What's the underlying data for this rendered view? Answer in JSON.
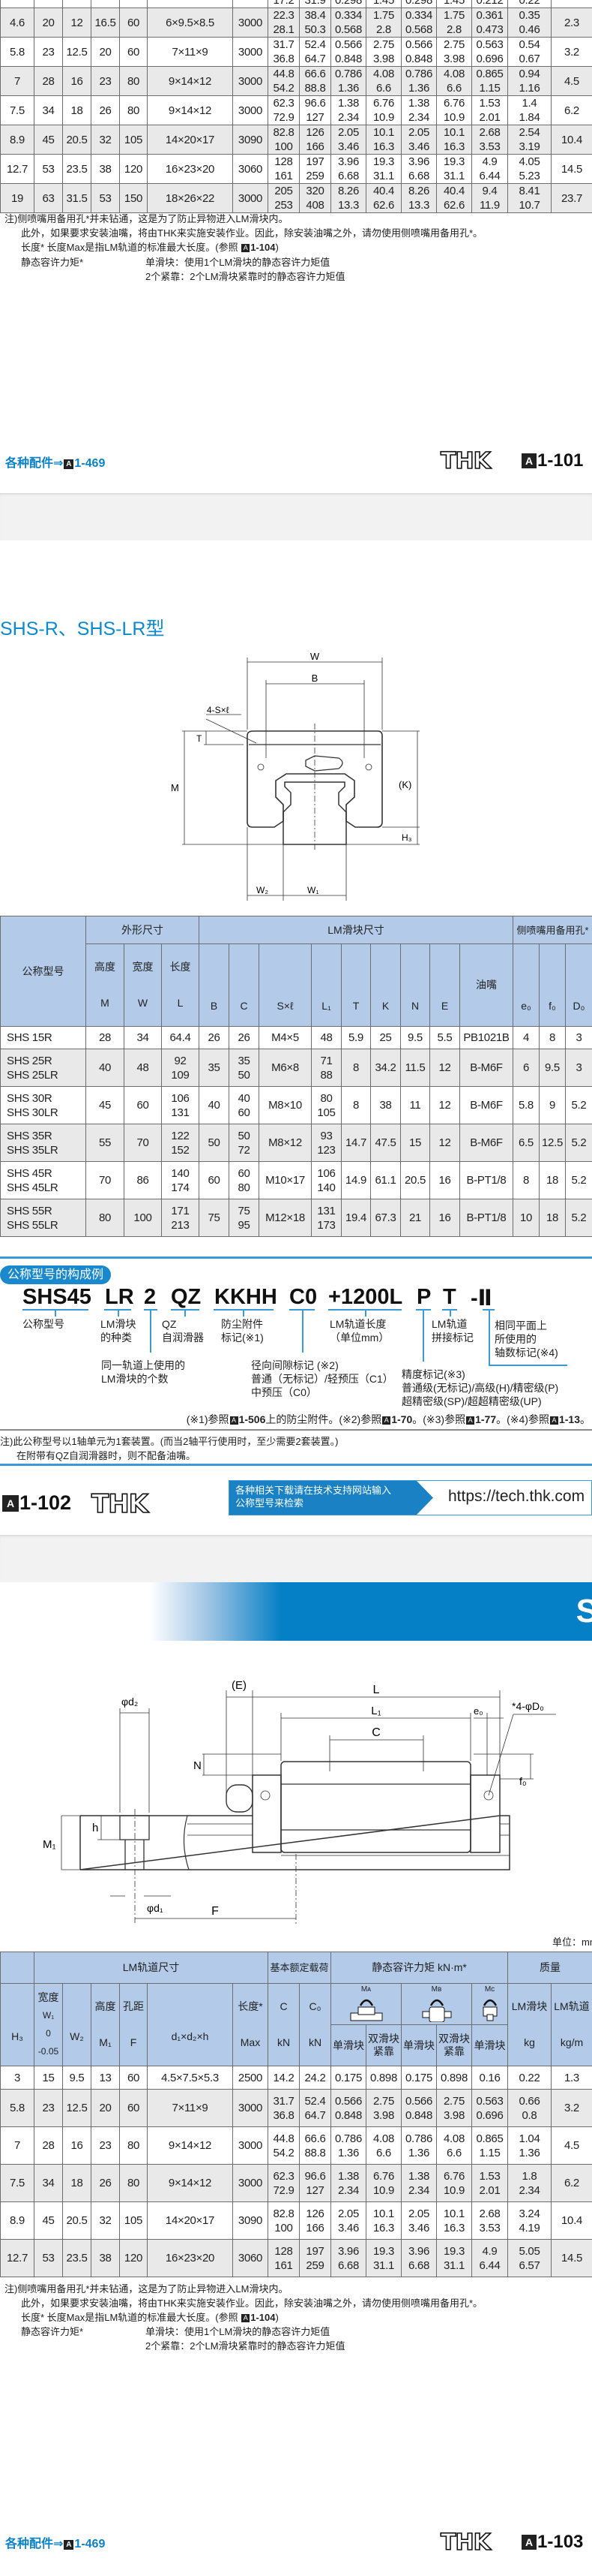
{
  "accent_color": "#0b82c8",
  "header_color": "#b3cbe9",
  "top_table": {
    "partial_row": [
      "17.2",
      "31.9",
      "0.298",
      "1.45",
      "0.298",
      "1.45",
      "0.212",
      "0.22"
    ],
    "rows": [
      [
        "4.6",
        "20",
        "12",
        "16.5",
        "60",
        "6×9.5×8.5",
        "3000",
        "22.3\n28.1",
        "38.4\n50.3",
        "0.334\n0.568",
        "1.75\n2.8",
        "0.334\n0.568",
        "1.75\n2.8",
        "0.361\n0.473",
        "0.35\n0.46",
        "2.3"
      ],
      [
        "5.8",
        "23",
        "12.5",
        "20",
        "60",
        "7×11×9",
        "3000",
        "31.7\n36.8",
        "52.4\n64.7",
        "0.566\n0.848",
        "2.75\n3.98",
        "0.566\n0.848",
        "2.75\n3.98",
        "0.563\n0.696",
        "0.54\n0.67",
        "3.2"
      ],
      [
        "7",
        "28",
        "16",
        "23",
        "80",
        "9×14×12",
        "3000",
        "44.8\n54.2",
        "66.6\n88.8",
        "0.786\n1.36",
        "4.08\n6.6",
        "0.786\n1.36",
        "4.08\n6.6",
        "0.865\n1.15",
        "0.94\n1.16",
        "4.5"
      ],
      [
        "7.5",
        "34",
        "18",
        "26",
        "80",
        "9×14×12",
        "3000",
        "62.3\n72.9",
        "96.6\n127",
        "1.38\n2.34",
        "6.76\n10.9",
        "1.38\n2.34",
        "6.76\n10.9",
        "1.53\n2.01",
        "1.4\n1.84",
        "6.2"
      ],
      [
        "8.9",
        "45",
        "20.5",
        "32",
        "105",
        "14×20×17",
        "3090",
        "82.8\n100",
        "126\n166",
        "2.05\n3.46",
        "10.1\n16.3",
        "2.05\n3.46",
        "10.1\n16.3",
        "2.68\n3.53",
        "2.54\n3.19",
        "10.4"
      ],
      [
        "12.7",
        "53",
        "23.5",
        "38",
        "120",
        "16×23×20",
        "3060",
        "128\n161",
        "197\n259",
        "3.96\n6.68",
        "19.3\n31.1",
        "3.96\n6.68",
        "19.3\n31.1",
        "4.9\n6.44",
        "4.05\n5.23",
        "14.5"
      ],
      [
        "19",
        "63",
        "31.5",
        "53",
        "150",
        "18×26×22",
        "3000",
        "205\n253",
        "320\n408",
        "8.26\n13.3",
        "40.4\n62.6",
        "8.26\n13.3",
        "40.4\n62.6",
        "9.4\n11.9",
        "8.41\n10.7",
        "23.7"
      ]
    ]
  },
  "notes": {
    "line1": "注)侧喷嘴用备用孔*并未钻通，这是为了防止异物进入LM滑块内。",
    "line2": "此外，如果要求安装油嘴，将由THK来实施安装作业。因此，除安装油嘴之外，请勿使用侧喷嘴用备用孔*。",
    "line3_a": "长度*  长度Max是指LM轨道的标准最大长度。(参照 ",
    "line3_ref": "1-104",
    "line3_b": ")",
    "line4_label": "静态容许力矩*",
    "line4": "单滑块：使用1个LM滑块的静态容许力矩值",
    "line5": "2个紧靠：2个LM滑块紧靠时的静态容许力矩值"
  },
  "footer_101": {
    "accessories": "各种配件⇒",
    "accessories_ref": "1-469",
    "logo": "THK",
    "page": "1-101"
  },
  "section_title": "SHS-R、SHS-LR型",
  "diagram1_labels": {
    "W": "W",
    "B": "B",
    "S": "4-S×ℓ",
    "T": "T",
    "M": "M",
    "K": "(K)",
    "H3": "H₃",
    "W2": "W₂",
    "W1": "W₁"
  },
  "mid_table": {
    "header": {
      "model": "公称型号",
      "outer": "外形尺寸",
      "block": "LM滑块尺寸",
      "side": "侧喷嘴用备用孔*",
      "height": "高度",
      "width": "宽度",
      "length": "长度",
      "M": "M",
      "W": "W",
      "L": "L",
      "B": "B",
      "C": "C",
      "S": "S×ℓ",
      "L1": "L₁",
      "T": "T",
      "K": "K",
      "N": "N",
      "E": "E",
      "nipple": "油嘴",
      "e0": "e₀",
      "f0": "f₀",
      "D0": "D₀"
    },
    "rows": [
      [
        "SHS 15R",
        "28",
        "34",
        "64.4",
        "26",
        "26",
        "M4×5",
        "48",
        "5.9",
        "25",
        "9.5",
        "5.5",
        "PB1021B",
        "4",
        "8",
        "3"
      ],
      [
        "SHS 25R\nSHS 25LR",
        "40",
        "48",
        "92\n109",
        "35",
        "35\n50",
        "M6×8",
        "71\n88",
        "8",
        "34.2",
        "11.5",
        "12",
        "B-M6F",
        "6",
        "9.5",
        "3"
      ],
      [
        "SHS 30R\nSHS 30LR",
        "45",
        "60",
        "106\n131",
        "40",
        "40\n60",
        "M8×10",
        "80\n105",
        "8",
        "38",
        "11",
        "12",
        "B-M6F",
        "5.8",
        "9",
        "5.2"
      ],
      [
        "SHS 35R\nSHS 35LR",
        "55",
        "70",
        "122\n152",
        "50",
        "50\n72",
        "M8×12",
        "93\n123",
        "14.7",
        "47.5",
        "15",
        "12",
        "B-M6F",
        "6.5",
        "12.5",
        "5.2"
      ],
      [
        "SHS 45R\nSHS 45LR",
        "70",
        "86",
        "140\n174",
        "60",
        "60\n80",
        "M10×17",
        "106\n140",
        "14.9",
        "61.1",
        "20.5",
        "16",
        "B-PT1/8",
        "8",
        "18",
        "5.2"
      ],
      [
        "SHS 55R\nSHS 55LR",
        "80",
        "100",
        "171\n213",
        "75",
        "75\n95",
        "M12×18",
        "131\n173",
        "19.4",
        "67.3",
        "21",
        "16",
        "B-PT1/8",
        "10",
        "18",
        "5.2"
      ]
    ]
  },
  "model_code": {
    "label": "公称型号的构成例",
    "parts": [
      "SHS45",
      "LR",
      "2",
      "QZ",
      "KKHH",
      "C0",
      "+1200L",
      "P",
      "T",
      "-Ⅱ"
    ],
    "annotations": {
      "model": "公称型号",
      "block_type": "LM滑块\n的种类",
      "qz": "QZ\n自润滑器",
      "dust": "防尘附件\n标记(※1)",
      "rail_len": "LM轨道长度\n（单位mm）",
      "joint": "LM轨道\n拼接标记",
      "axes": "相同平面上\n所使用的\n轴数标记(※4)",
      "count": "同一轨道上使用的\nLM滑块的个数",
      "clearance": "径向间隙标记 (※2)\n普通（无标记）/轻预压（C1）\n中预压（C0）",
      "accuracy": "精度标记(※3)\n普通级(无标记)/高级(H)/精密级(P)\n超精密级(SP)/超超精密级(UP)"
    },
    "refs": [
      "(※1)参照",
      "1-506",
      "上的防尘附件。(※2)参照",
      "1-70",
      "。(※3)参照",
      "1-77",
      "。(※4)参照",
      "1-13",
      "。"
    ],
    "note1": "注)此公称型号以1轴单元为1套装置。(而当2轴平行使用时，至少需要2套装置。)",
    "note2": "在附带有QZ自润滑器时，则不配备油嘴。"
  },
  "footer_102": {
    "page": "1-102",
    "logo": "THK",
    "banner_text": "各种相关下载请在技术支持网站输入\n公称型号来检索",
    "url": "https://tech.thk.com"
  },
  "banner_letter": "S",
  "diagram2_labels": {
    "E": "(E)",
    "L": "L",
    "L1": "L₁",
    "C": "C",
    "e0": "e₀",
    "D0": "*4-φD₀",
    "N": "N",
    "f0": "f₀",
    "d2": "φd₂",
    "h": "h",
    "M1": "M₁",
    "d1": "φd₁",
    "F": "F"
  },
  "unit": "单位：mm",
  "bottom_table": {
    "header": {
      "rail": "LM轨道尺寸",
      "rating": "基本额定载荷",
      "moment": "静态容许力矩 kN·m*",
      "mass": "质量",
      "H3": "H₃",
      "width": "宽度",
      "W1": "W₁",
      "tol_hi": "0",
      "tol_lo": "-0.05",
      "W2": "W₂",
      "height": "高度",
      "M1": "M₁",
      "pitch": "孔距",
      "F": "F",
      "dxdxh": "d₁×d₂×h",
      "length": "长度*",
      "max": "Max",
      "C": "C",
      "C0": "C₀",
      "kN": "kN",
      "kN2": "kN",
      "MA": "Mᴀ",
      "MB": "Mʙ",
      "MC": "Mᴄ",
      "single": "单滑块",
      "double": "双滑块\n紧靠",
      "single2": "单滑块",
      "double2": "双滑块\n紧靠",
      "single3": "单滑块",
      "block_mass": "LM滑块",
      "rail_mass": "LM轨道",
      "kg": "kg",
      "kgm": "kg/m"
    },
    "rows": [
      [
        "3",
        "15",
        "9.5",
        "13",
        "60",
        "4.5×7.5×5.3",
        "2500",
        "14.2",
        "24.2",
        "0.175",
        "0.898",
        "0.175",
        "0.898",
        "0.16",
        "0.22",
        "1.3"
      ],
      [
        "5.8",
        "23",
        "12.5",
        "20",
        "60",
        "7×11×9",
        "3000",
        "31.7\n36.8",
        "52.4\n64.7",
        "0.566\n0.848",
        "2.75\n3.98",
        "0.566\n0.848",
        "2.75\n3.98",
        "0.563\n0.696",
        "0.66\n0.8",
        "3.2"
      ],
      [
        "7",
        "28",
        "16",
        "23",
        "80",
        "9×14×12",
        "3000",
        "44.8\n54.2",
        "66.6\n88.8",
        "0.786\n1.36",
        "4.08\n6.6",
        "0.786\n1.36",
        "4.08\n6.6",
        "0.865\n1.15",
        "1.04\n1.36",
        "4.5"
      ],
      [
        "7.5",
        "34",
        "18",
        "26",
        "80",
        "9×14×12",
        "3000",
        "62.3\n72.9",
        "96.6\n127",
        "1.38\n2.34",
        "6.76\n10.9",
        "1.38\n2.34",
        "6.76\n10.9",
        "1.53\n2.01",
        "1.8\n2.34",
        "6.2"
      ],
      [
        "8.9",
        "45",
        "20.5",
        "32",
        "105",
        "14×20×17",
        "3090",
        "82.8\n100",
        "126\n166",
        "2.05\n3.46",
        "10.1\n16.3",
        "2.05\n3.46",
        "10.1\n16.3",
        "2.68\n3.53",
        "3.24\n4.19",
        "10.4"
      ],
      [
        "12.7",
        "53",
        "23.5",
        "38",
        "120",
        "16×23×20",
        "3060",
        "128\n161",
        "197\n259",
        "3.96\n6.68",
        "19.3\n31.1",
        "3.96\n6.68",
        "19.3\n31.1",
        "4.9\n6.44",
        "5.05\n6.57",
        "14.5"
      ]
    ]
  },
  "footer_103": {
    "accessories": "各种配件⇒",
    "accessories_ref": "1-469",
    "logo": "THK",
    "page": "1-103"
  }
}
